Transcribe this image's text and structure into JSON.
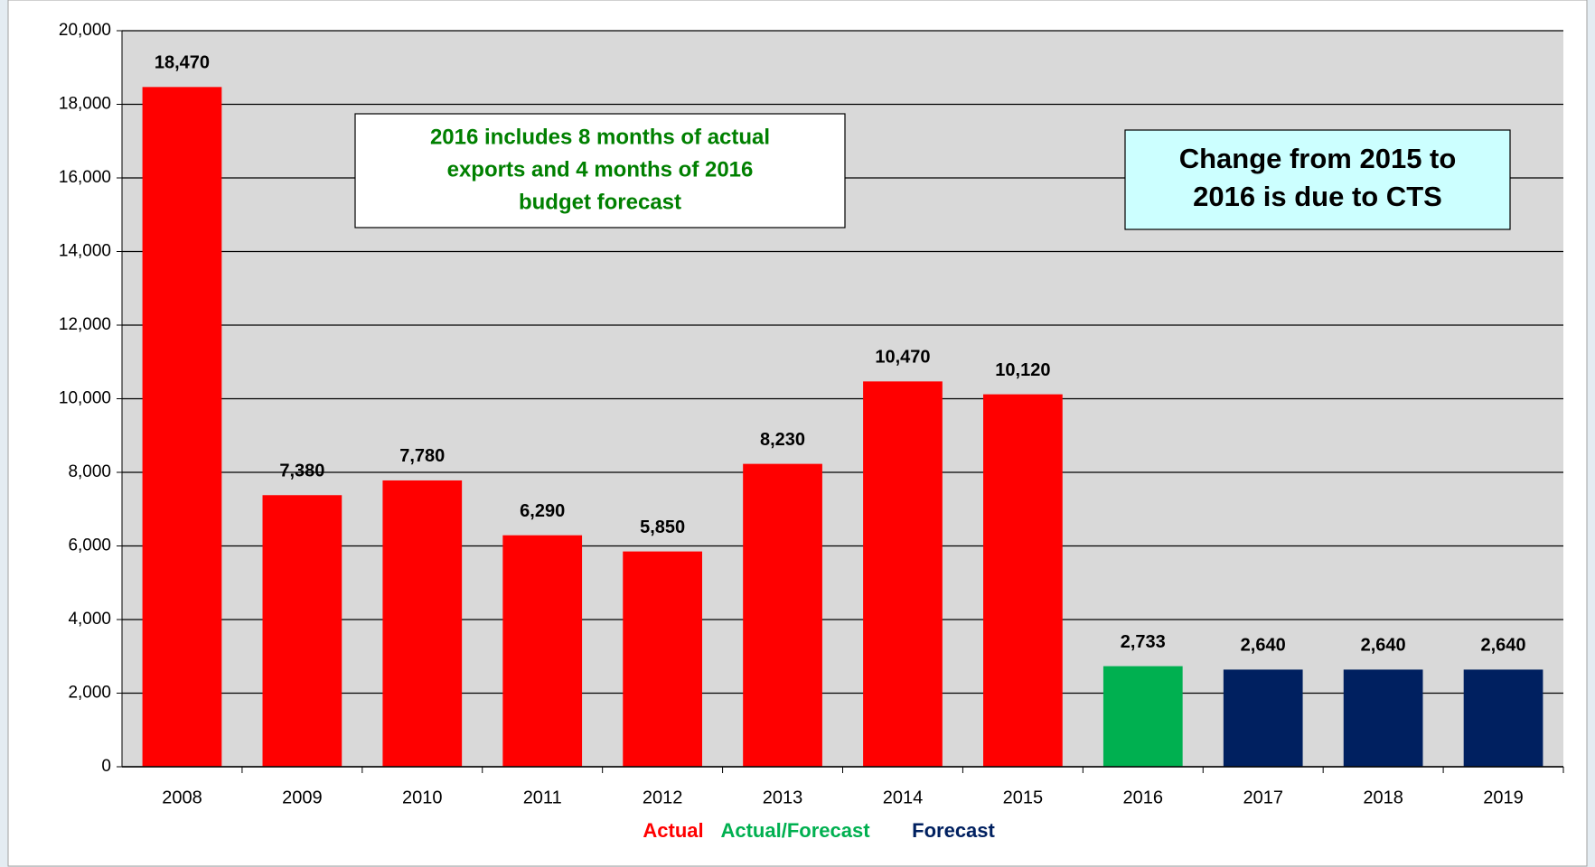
{
  "chart_data": {
    "type": "bar",
    "categories": [
      "2008",
      "2009",
      "2010",
      "2011",
      "2012",
      "2013",
      "2014",
      "2015",
      "2016",
      "2017",
      "2018",
      "2019"
    ],
    "values": [
      18470,
      7380,
      7780,
      6290,
      5850,
      8230,
      10470,
      10120,
      2733,
      2640,
      2640,
      2640
    ],
    "value_labels": [
      "18,470",
      "7,380",
      "7,780",
      "6,290",
      "5,850",
      "8,230",
      "10,470",
      "10,120",
      "2,733",
      "2,640",
      "2,640",
      "2,640"
    ],
    "colors": [
      "#ff0000",
      "#ff0000",
      "#ff0000",
      "#ff0000",
      "#ff0000",
      "#ff0000",
      "#ff0000",
      "#ff0000",
      "#00b050",
      "#002060",
      "#002060",
      "#002060"
    ],
    "ylim": [
      0,
      20000
    ],
    "yticks": [
      0,
      {
        "value": 2000,
        "label": "2,000"
      },
      {
        "value": 4000,
        "label": "4,000"
      },
      {
        "value": 6000,
        "label": "6,000"
      },
      {
        "value": 8000,
        "label": "8,000"
      },
      {
        "value": 10000,
        "label": "10,000"
      },
      {
        "value": 12000,
        "label": "12,000"
      },
      {
        "value": 14000,
        "label": "14,000"
      },
      {
        "value": 16000,
        "label": "16,000"
      },
      {
        "value": 18000,
        "label": "18,000"
      },
      {
        "value": 20000,
        "label": "20,000"
      }
    ],
    "grid": true,
    "legend": [
      {
        "name": "Actual",
        "color": "#ff0000"
      },
      {
        "name": "Actual/Forecast",
        "color": "#00b050"
      },
      {
        "name": "Forecast",
        "color": "#002060"
      }
    ],
    "annotations": [
      {
        "lines": [
          "2016 includes 8 months of actual",
          "exports and 4 months of 2016",
          "budget forecast"
        ]
      },
      {
        "lines": [
          "Change from 2015 to",
          "2016 is due to CTS"
        ]
      }
    ]
  }
}
